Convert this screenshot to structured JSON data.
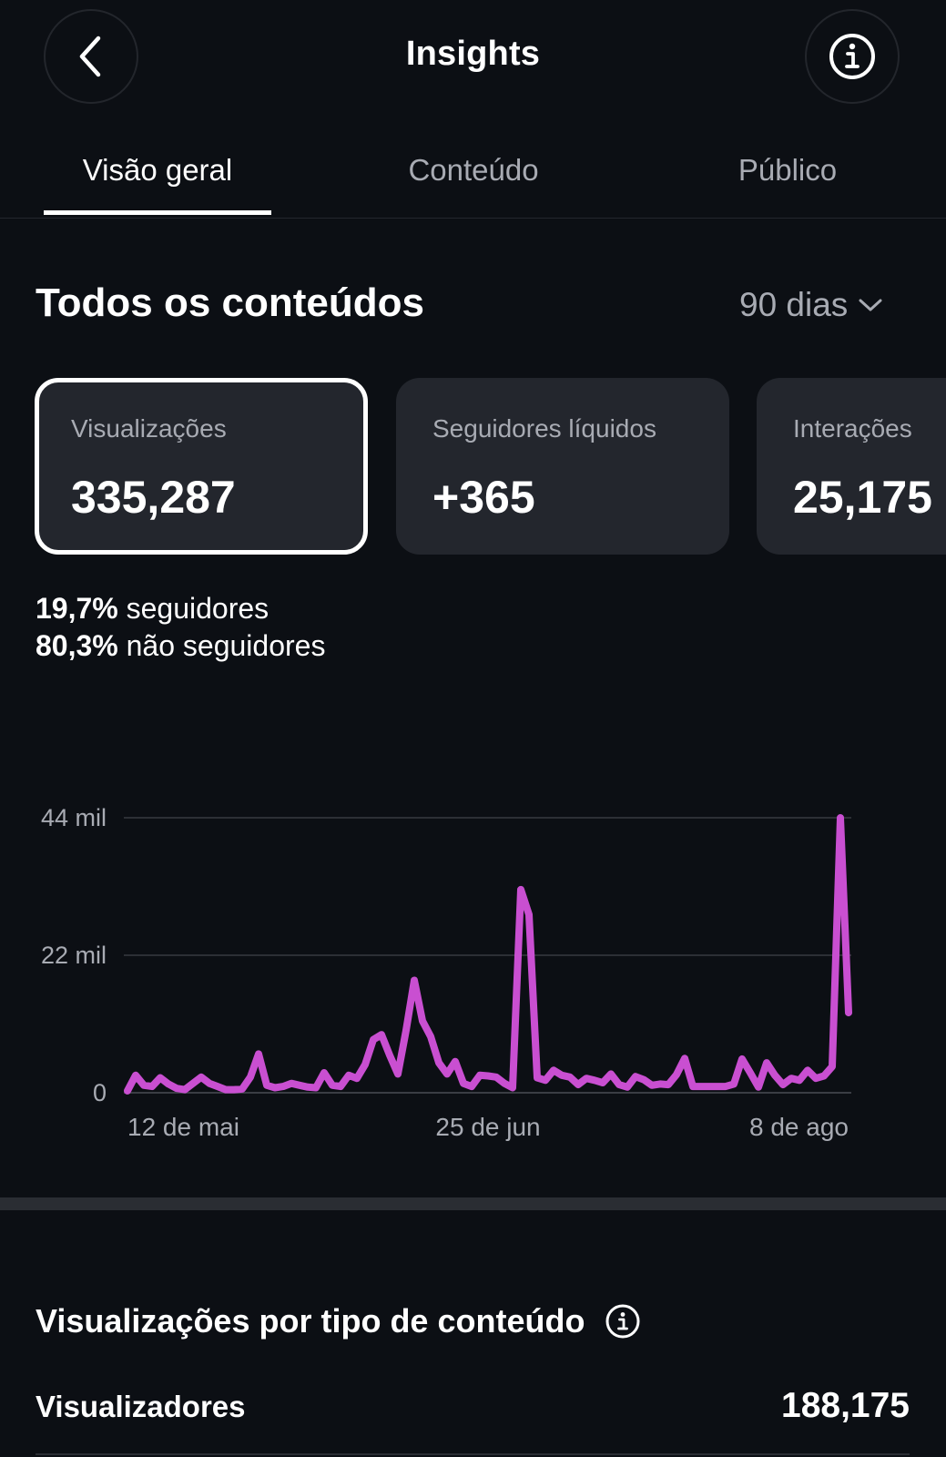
{
  "header": {
    "title": "Insights",
    "back_icon": "chevron-left-icon",
    "info_icon": "info-icon"
  },
  "tabs": [
    {
      "label": "Visão geral",
      "active": true
    },
    {
      "label": "Conteúdo",
      "active": false
    },
    {
      "label": "Público",
      "active": false
    }
  ],
  "section": {
    "title": "Todos os conteúdos",
    "period": "90 dias"
  },
  "cards": [
    {
      "label": "Visualizações",
      "value": "335,287",
      "selected": true
    },
    {
      "label": "Seguidores líquidos",
      "value": "+365",
      "selected": false
    },
    {
      "label": "Interações",
      "value": "25,175",
      "selected": false
    }
  ],
  "split": [
    {
      "pct": "19,7%",
      "label": "seguidores"
    },
    {
      "pct": "80,3%",
      "label": "não seguidores"
    }
  ],
  "chart_data": {
    "type": "line",
    "title": "",
    "xlabel": "",
    "ylabel": "",
    "ylim": [
      0,
      44000
    ],
    "yticks": [
      {
        "value": 0,
        "label": "0"
      },
      {
        "value": 22000,
        "label": "22 mil"
      },
      {
        "value": 44000,
        "label": "44 mil"
      }
    ],
    "xticks": [
      {
        "index": 0,
        "label": "12 de mai"
      },
      {
        "index": 44,
        "label": "25 de jun"
      },
      {
        "index": 88,
        "label": "8 de ago"
      }
    ],
    "grid": true,
    "color": "#c94fd1",
    "series": [
      {
        "values": [
          300,
          2800,
          1200,
          1000,
          2400,
          1400,
          700,
          500,
          1500,
          2500,
          1500,
          1000,
          500,
          500,
          600,
          2500,
          6200,
          1200,
          800,
          1000,
          1500,
          1200,
          900,
          800,
          3200,
          1200,
          1000,
          2800,
          2300,
          4500,
          8500,
          9300,
          6000,
          3000,
          10000,
          18000,
          11500,
          9000,
          4800,
          3000,
          5000,
          1500,
          1000,
          2800,
          2700,
          2500,
          1500,
          800,
          32500,
          28500,
          2400,
          2000,
          3600,
          2800,
          2500,
          1300,
          2300,
          2000,
          1600,
          3000,
          1300,
          900,
          2600,
          2100,
          1200,
          1400,
          1300,
          2900,
          5500,
          1000,
          1000,
          1000,
          1000,
          1000,
          1400,
          5400,
          3200,
          900,
          4800,
          2800,
          1300,
          2300,
          2000,
          3600,
          2300,
          2700,
          4200,
          44000,
          12800
        ]
      }
    ]
  },
  "content_type": {
    "title": "Visualizações por tipo de conteúdo",
    "info_icon": "info-icon"
  },
  "viewers": {
    "label": "Visualizadores",
    "value": "188,175"
  }
}
